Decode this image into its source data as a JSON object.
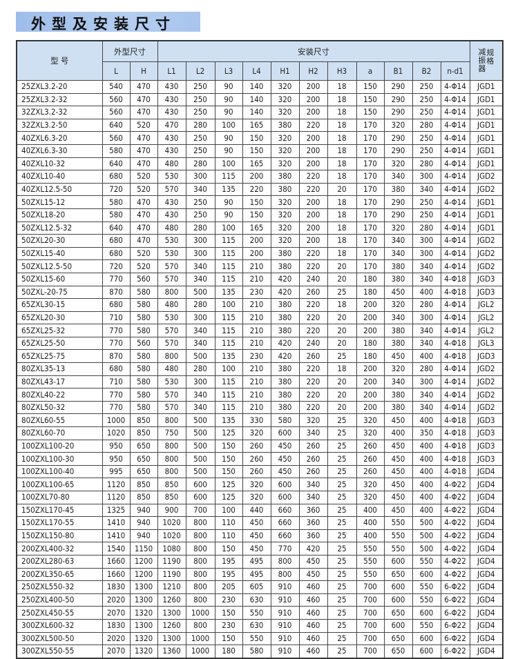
{
  "title": "外型及安装尺寸",
  "header": {
    "model": "型 号",
    "outline_group": "外型尺寸",
    "install_group": "安装尺寸",
    "vibration_a": "减振器",
    "vibration_b": "规格",
    "columns": [
      "L",
      "H",
      "L1",
      "L2",
      "L3",
      "L4",
      "H1",
      "H2",
      "H3",
      "a",
      "B1",
      "B2",
      "n-d1"
    ]
  },
  "rows": [
    [
      "25ZXL3.2-20",
      "540",
      "470",
      "430",
      "250",
      "90",
      "140",
      "320",
      "200",
      "18",
      "150",
      "290",
      "250",
      "4-Φ14",
      "JGD1"
    ],
    [
      "25ZXL3.2-32",
      "560",
      "470",
      "430",
      "250",
      "90",
      "140",
      "320",
      "200",
      "18",
      "150",
      "290",
      "250",
      "4-Φ14",
      "JGD1"
    ],
    [
      "32ZXL3.2-32",
      "560",
      "470",
      "430",
      "250",
      "90",
      "140",
      "320",
      "200",
      "18",
      "150",
      "290",
      "250",
      "4-Φ14",
      "JGD1"
    ],
    [
      "32ZXL3.2-50",
      "640",
      "520",
      "470",
      "280",
      "100",
      "165",
      "380",
      "220",
      "18",
      "170",
      "320",
      "280",
      "4-Φ14",
      "JGD1"
    ],
    [
      "40ZXL6.3-20",
      "560",
      "470",
      "430",
      "250",
      "90",
      "150",
      "320",
      "200",
      "18",
      "170",
      "290",
      "250",
      "4-Φ14",
      "JGD1"
    ],
    [
      "40ZXL6.3-30",
      "580",
      "470",
      "430",
      "250",
      "90",
      "150",
      "320",
      "200",
      "18",
      "170",
      "290",
      "250",
      "4-Φ14",
      "JGD1"
    ],
    [
      "40ZXL10-32",
      "640",
      "470",
      "480",
      "280",
      "100",
      "165",
      "320",
      "200",
      "18",
      "170",
      "320",
      "280",
      "4-Φ14",
      "JGD1"
    ],
    [
      "40ZXL10-40",
      "680",
      "520",
      "530",
      "300",
      "115",
      "200",
      "380",
      "220",
      "18",
      "170",
      "340",
      "300",
      "4-Φ14",
      "JGD2"
    ],
    [
      "40ZXL12.5-50",
      "720",
      "520",
      "570",
      "340",
      "135",
      "220",
      "380",
      "220",
      "20",
      "170",
      "380",
      "340",
      "4-Φ14",
      "JGD2"
    ],
    [
      "50ZXL15-12",
      "580",
      "470",
      "430",
      "250",
      "90",
      "150",
      "320",
      "200",
      "18",
      "170",
      "290",
      "250",
      "4-Φ14",
      "JGD1"
    ],
    [
      "50ZXL18-20",
      "580",
      "470",
      "430",
      "250",
      "90",
      "150",
      "320",
      "200",
      "18",
      "170",
      "290",
      "250",
      "4-Φ14",
      "JGD1"
    ],
    [
      "50ZXL12.5-32",
      "640",
      "470",
      "480",
      "280",
      "100",
      "165",
      "320",
      "200",
      "18",
      "170",
      "320",
      "280",
      "4-Φ14",
      "JGD1"
    ],
    [
      "50ZXL20-30",
      "680",
      "470",
      "530",
      "300",
      "115",
      "200",
      "320",
      "200",
      "18",
      "170",
      "340",
      "300",
      "4-Φ14",
      "JGD2"
    ],
    [
      "50ZXL15-40",
      "680",
      "520",
      "530",
      "300",
      "115",
      "200",
      "380",
      "220",
      "18",
      "170",
      "340",
      "300",
      "4-Φ14",
      "JGD2"
    ],
    [
      "50ZXL12.5-50",
      "720",
      "520",
      "570",
      "340",
      "115",
      "210",
      "380",
      "220",
      "20",
      "170",
      "380",
      "340",
      "4-Φ14",
      "JGD2"
    ],
    [
      "50ZXL15-60",
      "770",
      "560",
      "570",
      "340",
      "115",
      "210",
      "420",
      "240",
      "20",
      "180",
      "380",
      "340",
      "4-Φ18",
      "JGD3"
    ],
    [
      "50ZXL-20-75",
      "870",
      "580",
      "800",
      "500",
      "135",
      "230",
      "420",
      "260",
      "25",
      "180",
      "450",
      "400",
      "4-Φ18",
      "JGD3"
    ],
    [
      "65ZXL30-15",
      "680",
      "580",
      "480",
      "280",
      "100",
      "210",
      "380",
      "220",
      "18",
      "200",
      "320",
      "280",
      "4-Φ14",
      "JGL2"
    ],
    [
      "65ZXL20-30",
      "710",
      "580",
      "530",
      "300",
      "115",
      "210",
      "380",
      "220",
      "20",
      "200",
      "340",
      "300",
      "4-Φ14",
      "JGL2"
    ],
    [
      "65ZXL25-32",
      "770",
      "580",
      "570",
      "340",
      "115",
      "210",
      "380",
      "220",
      "20",
      "200",
      "380",
      "340",
      "4-Φ14",
      "JGL2"
    ],
    [
      "65ZXL25-50",
      "770",
      "560",
      "570",
      "340",
      "115",
      "210",
      "420",
      "240",
      "20",
      "180",
      "380",
      "340",
      "4-Φ18",
      "JGL3"
    ],
    [
      "65ZXL25-75",
      "870",
      "580",
      "800",
      "500",
      "135",
      "230",
      "420",
      "260",
      "25",
      "180",
      "450",
      "400",
      "4-Φ18",
      "JGD3"
    ],
    [
      "80ZXL35-13",
      "680",
      "580",
      "480",
      "280",
      "100",
      "210",
      "380",
      "220",
      "18",
      "200",
      "320",
      "280",
      "4-Φ14",
      "JGD2"
    ],
    [
      "80ZXL43-17",
      "710",
      "580",
      "530",
      "300",
      "115",
      "210",
      "380",
      "220",
      "20",
      "200",
      "340",
      "300",
      "4-Φ14",
      "JGD2"
    ],
    [
      "80ZXL40-22",
      "770",
      "580",
      "570",
      "340",
      "115",
      "210",
      "380",
      "220",
      "20",
      "200",
      "380",
      "340",
      "4-Φ14",
      "JGD2"
    ],
    [
      "80ZXL50-32",
      "770",
      "580",
      "570",
      "340",
      "115",
      "210",
      "380",
      "220",
      "20",
      "200",
      "380",
      "340",
      "4-Φ14",
      "JGD2"
    ],
    [
      "80ZXL60-55",
      "1000",
      "850",
      "800",
      "500",
      "135",
      "330",
      "580",
      "320",
      "25",
      "320",
      "450",
      "400",
      "4-Φ18",
      "JGD3"
    ],
    [
      "80ZXL60-70",
      "1020",
      "850",
      "750",
      "500",
      "125",
      "320",
      "600",
      "340",
      "25",
      "320",
      "400",
      "350",
      "4-Φ18",
      "JGD3"
    ],
    [
      "100ZXL100-20",
      "950",
      "650",
      "800",
      "500",
      "150",
      "260",
      "450",
      "260",
      "25",
      "260",
      "450",
      "400",
      "4-Φ18",
      "JGD3"
    ],
    [
      "100ZXL100-30",
      "950",
      "650",
      "800",
      "500",
      "150",
      "260",
      "450",
      "260",
      "25",
      "260",
      "450",
      "400",
      "4-Φ18",
      "JGD3"
    ],
    [
      "100ZXL100-40",
      "995",
      "650",
      "800",
      "500",
      "150",
      "260",
      "450",
      "260",
      "25",
      "260",
      "450",
      "400",
      "4-Φ18",
      "JGD4"
    ],
    [
      "100ZXL100-65",
      "1120",
      "850",
      "850",
      "600",
      "125",
      "320",
      "600",
      "340",
      "25",
      "320",
      "450",
      "400",
      "4-Φ22",
      "JGD4"
    ],
    [
      "100ZXL70-80",
      "1120",
      "850",
      "850",
      "600",
      "125",
      "320",
      "600",
      "340",
      "25",
      "320",
      "450",
      "400",
      "4-Φ22",
      "JGD4"
    ],
    [
      "150ZXL170-45",
      "1325",
      "940",
      "900",
      "700",
      "100",
      "440",
      "660",
      "360",
      "25",
      "400",
      "450",
      "400",
      "4-Φ22",
      "JGD4"
    ],
    [
      "150ZXL170-55",
      "1410",
      "940",
      "1020",
      "800",
      "110",
      "450",
      "660",
      "360",
      "25",
      "400",
      "550",
      "500",
      "4-Φ22",
      "JGD4"
    ],
    [
      "150ZXL150-80",
      "1410",
      "940",
      "1020",
      "800",
      "110",
      "450",
      "660",
      "360",
      "25",
      "400",
      "550",
      "500",
      "4-Φ22",
      "JGD4"
    ],
    [
      "200ZXL400-32",
      "1540",
      "1150",
      "1080",
      "800",
      "150",
      "450",
      "770",
      "420",
      "25",
      "550",
      "550",
      "500",
      "4-Φ22",
      "JGD4"
    ],
    [
      "200ZXL280-63",
      "1660",
      "1200",
      "1190",
      "800",
      "195",
      "495",
      "800",
      "450",
      "25",
      "550",
      "600",
      "550",
      "4-Φ22",
      "JGD4"
    ],
    [
      "200ZXL350-65",
      "1660",
      "1200",
      "1190",
      "800",
      "195",
      "495",
      "800",
      "450",
      "25",
      "550",
      "650",
      "600",
      "4-Φ22",
      "JGD4"
    ],
    [
      "250ZXL550-32",
      "1830",
      "1300",
      "1210",
      "800",
      "205",
      "605",
      "910",
      "460",
      "25",
      "700",
      "600",
      "550",
      "6-Φ22",
      "JGD4"
    ],
    [
      "250ZXL400-50",
      "2020",
      "1300",
      "1260",
      "800",
      "230",
      "630",
      "910",
      "460",
      "25",
      "700",
      "600",
      "550",
      "6-Φ22",
      "JGD4"
    ],
    [
      "250ZXL450-55",
      "2070",
      "1320",
      "1300",
      "1000",
      "150",
      "550",
      "910",
      "460",
      "25",
      "700",
      "650",
      "600",
      "6-Φ22",
      "JGD4"
    ],
    [
      "300ZXL600-32",
      "1830",
      "1300",
      "1260",
      "800",
      "230",
      "630",
      "910",
      "460",
      "25",
      "700",
      "600",
      "550",
      "6-Φ22",
      "JGD4"
    ],
    [
      "300ZXL500-50",
      "2020",
      "1320",
      "1300",
      "1000",
      "150",
      "550",
      "910",
      "460",
      "25",
      "700",
      "650",
      "600",
      "6-Φ22",
      "JGD4"
    ],
    [
      "300ZXL550-55",
      "2070",
      "1320",
      "1360",
      "1000",
      "180",
      "580",
      "910",
      "460",
      "25",
      "700",
      "650",
      "600",
      "6-Φ22",
      "JGD4"
    ]
  ]
}
